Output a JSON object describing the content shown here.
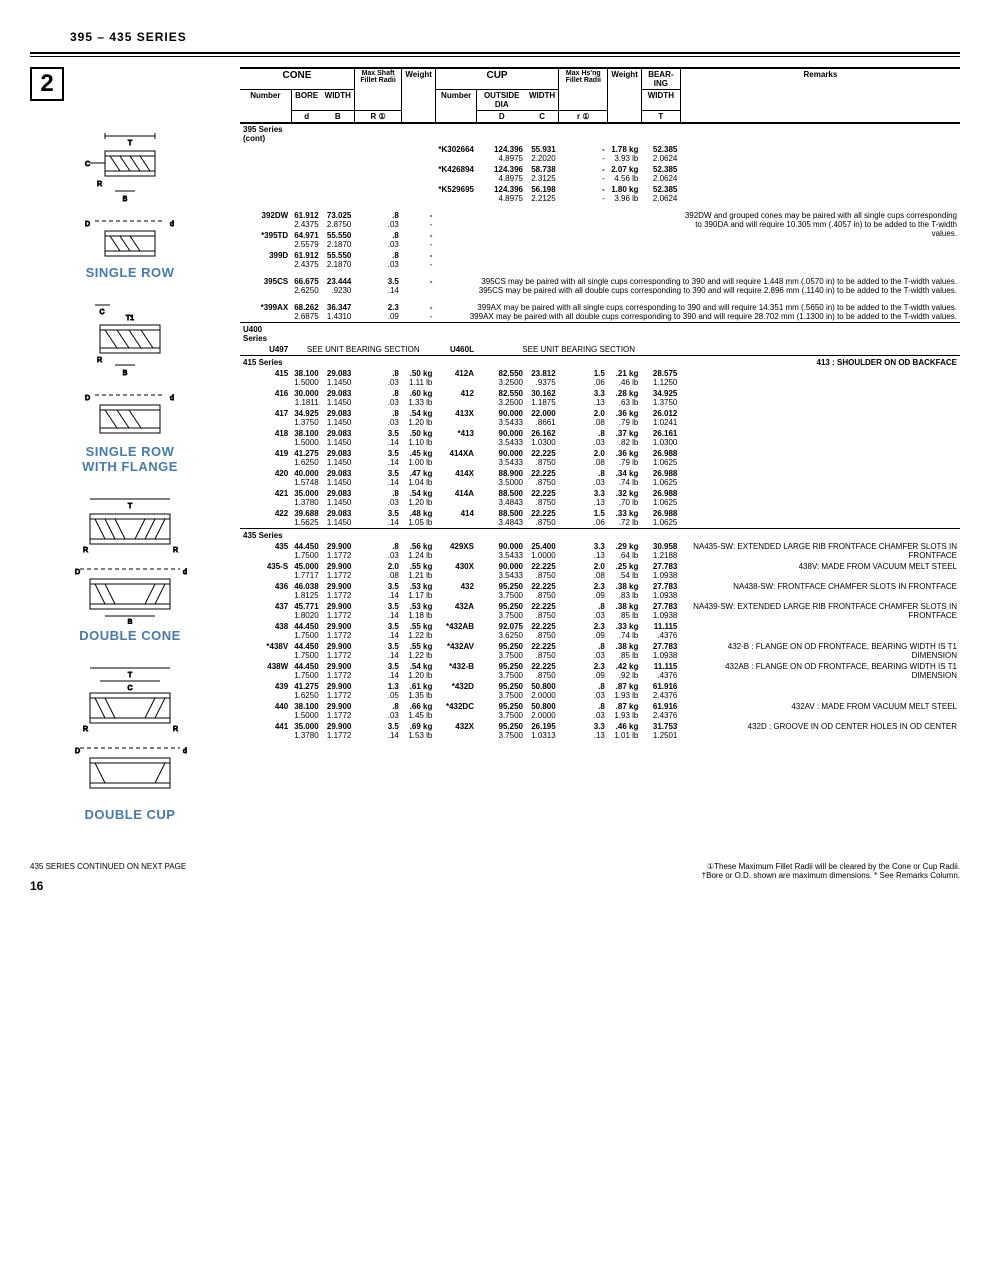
{
  "page_title": "395 – 435 SERIES",
  "section_number": "2",
  "diagrams": [
    {
      "label": "SINGLE ROW"
    },
    {
      "label": "SINGLE ROW\nWITH FLANGE"
    },
    {
      "label": "DOUBLE CONE"
    },
    {
      "label": "DOUBLE CUP"
    }
  ],
  "header": {
    "cone": "CONE",
    "cup": "CUP",
    "number": "Number",
    "bore": "BORE",
    "bore_sym": "d",
    "width": "WIDTH",
    "width_sym": "B",
    "max_shaft": "Max Shaft Fillet Radii",
    "r": "R ①",
    "weight": "Weight",
    "outside": "OUTSIDE DIA",
    "outside_sym": "D",
    "cup_width": "WIDTH",
    "cup_width_sym": "C",
    "max_hsng": "Max Hs'ng Fillet Radii",
    "r2": "r ①",
    "bearing": "BEAR-ING",
    "bearing_width": "WIDTH",
    "bearing_sym": "T",
    "remarks": "Remarks"
  },
  "s395_cont": "395 Series (cont)",
  "s395_cont_rows": [
    {
      "cup": "*K302664",
      "od1": "124.396",
      "od2": "4.8975",
      "cw1": "55.931",
      "cw2": "2.2020",
      "r1": "-",
      "r2": "-",
      "wt1": "1.78 kg",
      "wt2": "3.93 lb",
      "bw1": "52.385",
      "bw2": "2.0624"
    },
    {
      "cup": "*K426894",
      "od1": "124.396",
      "od2": "4.8975",
      "cw1": "58.738",
      "cw2": "2.3125",
      "r1": "-",
      "r2": "-",
      "wt1": "2.07 kg",
      "wt2": "4.56 lb",
      "bw1": "52.385",
      "bw2": "2.0624"
    },
    {
      "cup": "*K529695",
      "od1": "124.396",
      "od2": "4.8975",
      "cw1": "56.198",
      "cw2": "2.2125",
      "r1": "-",
      "r2": "-",
      "wt1": "1.80 kg",
      "wt2": "3.96 lb",
      "bw1": "52.385",
      "bw2": "2.0624"
    }
  ],
  "group1": [
    {
      "n": "392DW",
      "b1": "61.912",
      "b2": "2.4375",
      "w1": "73.025",
      "w2": "2.8750",
      "r1": ".8",
      "r2": ".03",
      "wt1": "-",
      "wt2": "-",
      "rem": "392DW and grouped cones may be paired with all single cups corresponding to 390DA and will require 10.305 mm (.4057 in) to be added to the T-width values."
    },
    {
      "n": "*395TD",
      "b1": "64.971",
      "b2": "2.5579",
      "w1": "55.550",
      "w2": "2.1870",
      "r1": ".8",
      "r2": ".03",
      "wt1": "-",
      "wt2": "-"
    },
    {
      "n": "399D",
      "b1": "61.912",
      "b2": "2.4375",
      "w1": "55.550",
      "w2": "2.1870",
      "r1": ".8",
      "r2": ".03",
      "wt1": "-",
      "wt2": "-"
    }
  ],
  "r395cs": {
    "n": "395CS",
    "b1": "66.675",
    "b2": "2.6250",
    "w1": "23.444",
    "w2": ".9230",
    "r1": "3.5",
    "r2": ".14",
    "wt1": "-",
    "wt2": "",
    "rem": "395CS may be paired with all single cups corresponding to 390 and will require 1.448 mm (.0570 in) to be added to the T-width values.\n395CS may be paired with all double cups corresponding to 390 and will require 2.896 mm (.1140 in) to be added to the T-width values."
  },
  "r399ax": {
    "n": "*399AX",
    "b1": "68.262",
    "b2": "2.6875",
    "w1": "36.347",
    "w2": "1.4310",
    "r1": "2.3",
    "r2": ".09",
    "wt1": "-",
    "wt2": "-",
    "rem": "399AX may be paired with all single cups corresponding to 390 and will require 14.351 mm (.5650 in) to be added to the T-width values.\n399AX may be paired with all double cups corresponding to 390 and will require 28.702 mm (1.1300 in) to be added to the T-width values."
  },
  "u400": {
    "label": "U400 Series",
    "num": "U497",
    "txt": "SEE UNIT BEARING SECTION",
    "cup": "U460L",
    "txt2": "SEE UNIT BEARING SECTION"
  },
  "s415_label": "415 Series",
  "s415_remark": "413 :  SHOULDER ON OD BACKFACE",
  "s415": [
    {
      "n": "415",
      "b1": "38.100",
      "b2": "1.5000",
      "w1": "29.083",
      "w2": "1.1450",
      "r1": ".8",
      "r2": ".03",
      "wt1": ".50 kg",
      "wt2": "1.11 lb",
      "cup": "412A",
      "od1": "82.550",
      "od2": "3.2500",
      "cw1": "23.812",
      "cw2": ".9375",
      "hr1": "1.5",
      "hr2": ".06",
      "cwt1": ".21 kg",
      "cwt2": ".46 lb",
      "bw1": "28.575",
      "bw2": "1.1250"
    },
    {
      "n": "416",
      "b1": "30.000",
      "b2": "1.1811",
      "w1": "29.083",
      "w2": "1.1450",
      "r1": ".8",
      "r2": ".03",
      "wt1": ".60 kg",
      "wt2": "1.33 lb",
      "cup": "412",
      "od1": "82.550",
      "od2": "3.2500",
      "cw1": "30.162",
      "cw2": "1.1875",
      "hr1": "3.3",
      "hr2": ".13",
      "cwt1": ".28 kg",
      "cwt2": ".63 lb",
      "bw1": "34.925",
      "bw2": "1.3750"
    },
    {
      "n": "417",
      "b1": "34.925",
      "b2": "1.3750",
      "w1": "29.083",
      "w2": "1.1450",
      "r1": ".8",
      "r2": ".03",
      "wt1": ".54 kg",
      "wt2": "1.20 lb",
      "cup": "413X",
      "od1": "90.000",
      "od2": "3.5433",
      "cw1": "22.000",
      "cw2": ".8661",
      "hr1": "2.0",
      "hr2": ".08",
      "cwt1": ".36 kg",
      "cwt2": ".79 lb",
      "bw1": "26.012",
      "bw2": "1.0241"
    },
    {
      "n": "418",
      "b1": "38.100",
      "b2": "1.5000",
      "w1": "29.083",
      "w2": "1.1450",
      "r1": "3.5",
      "r2": ".14",
      "wt1": ".50 kg",
      "wt2": "1.10 lb",
      "cup": "*413",
      "od1": "90.000",
      "od2": "3.5433",
      "cw1": "26.162",
      "cw2": "1.0300",
      "hr1": ".8",
      "hr2": ".03",
      "cwt1": ".37 kg",
      "cwt2": ".82 lb",
      "bw1": "26.161",
      "bw2": "1.0300"
    },
    {
      "n": "419",
      "b1": "41.275",
      "b2": "1.6250",
      "w1": "29.083",
      "w2": "1.1450",
      "r1": "3.5",
      "r2": ".14",
      "wt1": ".45 kg",
      "wt2": "1.00 lb",
      "cup": "414XA",
      "od1": "90.000",
      "od2": "3.5433",
      "cw1": "22.225",
      "cw2": ".8750",
      "hr1": "2.0",
      "hr2": ".08",
      "cwt1": ".36 kg",
      "cwt2": ".79 lb",
      "bw1": "26.988",
      "bw2": "1.0625"
    },
    {
      "n": "420",
      "b1": "40.000",
      "b2": "1.5748",
      "w1": "29.083",
      "w2": "1.1450",
      "r1": "3.5",
      "r2": ".14",
      "wt1": ".47 kg",
      "wt2": "1.04 lb",
      "cup": "414X",
      "od1": "88.900",
      "od2": "3.5000",
      "cw1": "22.225",
      "cw2": ".8750",
      "hr1": ".8",
      "hr2": ".03",
      "cwt1": ".34 kg",
      "cwt2": ".74 lb",
      "bw1": "26.988",
      "bw2": "1.0625"
    },
    {
      "n": "421",
      "b1": "35.000",
      "b2": "1.3780",
      "w1": "29.083",
      "w2": "1.1450",
      "r1": ".8",
      "r2": ".03",
      "wt1": ".54 kg",
      "wt2": "1.20 lb",
      "cup": "414A",
      "od1": "88.500",
      "od2": "3.4843",
      "cw1": "22.225",
      "cw2": ".8750",
      "hr1": "3.3",
      "hr2": ".13",
      "cwt1": ".32 kg",
      "cwt2": ".70 lb",
      "bw1": "26.988",
      "bw2": "1.0625"
    },
    {
      "n": "422",
      "b1": "39.688",
      "b2": "1.5625",
      "w1": "29.083",
      "w2": "1.1450",
      "r1": "3.5",
      "r2": ".14",
      "wt1": ".48 kg",
      "wt2": "1.05 lb",
      "cup": "414",
      "od1": "88.500",
      "od2": "3.4843",
      "cw1": "22.225",
      "cw2": ".8750",
      "hr1": "1.5",
      "hr2": ".06",
      "cwt1": ".33 kg",
      "cwt2": ".72 lb",
      "bw1": "26.988",
      "bw2": "1.0625"
    }
  ],
  "s435_label": "435 Series",
  "s435": [
    {
      "n": "435",
      "b1": "44.450",
      "b2": "1.7500",
      "w1": "29.900",
      "w2": "1.1772",
      "r1": ".8",
      "r2": ".03",
      "wt1": ".56 kg",
      "wt2": "1.24 lb",
      "cup": "429XS",
      "od1": "90.000",
      "od2": "3.5433",
      "cw1": "25.400",
      "cw2": "1.0000",
      "hr1": "3.3",
      "hr2": ".13",
      "cwt1": ".29 kg",
      "cwt2": ".64 lb",
      "bw1": "30.958",
      "bw2": "1.2188",
      "rem": "NA435-SW: EXTENDED LARGE RIB FRONTFACE CHAMFER SLOTS IN FRONTFACE"
    },
    {
      "n": "435-S",
      "b1": "45.000",
      "b2": "1.7717",
      "w1": "29.900",
      "w2": "1.1772",
      "r1": "2.0",
      "r2": ".08",
      "wt1": ".55 kg",
      "wt2": "1.21 lb",
      "cup": "430X",
      "od1": "90.000",
      "od2": "3.5433",
      "cw1": "22.225",
      "cw2": ".8750",
      "hr1": "2.0",
      "hr2": ".08",
      "cwt1": ".25 kg",
      "cwt2": ".54 lb",
      "bw1": "27.783",
      "bw2": "1.0938",
      "rem": "438V: MADE FROM VACUUM MELT STEEL"
    },
    {
      "n": "436",
      "b1": "46.038",
      "b2": "1.8125",
      "w1": "29.900",
      "w2": "1.1772",
      "r1": "3.5",
      "r2": ".14",
      "wt1": ".53 kg",
      "wt2": "1.17 lb",
      "cup": "432",
      "od1": "95.250",
      "od2": "3.7500",
      "cw1": "22.225",
      "cw2": ".8750",
      "hr1": "2.3",
      "hr2": ".09",
      "cwt1": ".38 kg",
      "cwt2": ".83 lb",
      "bw1": "27.783",
      "bw2": "1.0938",
      "rem": "NA438-SW: FRONTFACE CHAMFER SLOTS IN FRONTFACE"
    },
    {
      "n": "437",
      "b1": "45.771",
      "b2": "1.8020",
      "w1": "29.900",
      "w2": "1.1772",
      "r1": "3.5",
      "r2": ".14",
      "wt1": ".53 kg",
      "wt2": "1.18 lb",
      "cup": "432A",
      "od1": "95.250",
      "od2": "3.7500",
      "cw1": "22.225",
      "cw2": ".8750",
      "hr1": ".8",
      "hr2": ".03",
      "cwt1": ".38 kg",
      "cwt2": ".85 lb",
      "bw1": "27.783",
      "bw2": "1.0938",
      "rem": "NA439-SW: EXTENDED LARGE RIB FRONTFACE CHAMFER SLOTS IN FRONTFACE"
    },
    {
      "n": "438",
      "b1": "44.450",
      "b2": "1.7500",
      "w1": "29.900",
      "w2": "1.1772",
      "r1": "3.5",
      "r2": ".14",
      "wt1": ".55 kg",
      "wt2": "1.22 lb",
      "cup": "*432AB",
      "od1": "92.075",
      "od2": "3.6250",
      "cw1": "22.225",
      "cw2": ".8750",
      "hr1": "2.3",
      "hr2": ".09",
      "cwt1": ".33 kg",
      "cwt2": ".74 lb",
      "bw1": "11.115",
      "bw2": ".4376",
      "rem": ""
    },
    {
      "n": "*438V",
      "b1": "44.450",
      "b2": "1.7500",
      "w1": "29.900",
      "w2": "1.1772",
      "r1": "3.5",
      "r2": ".14",
      "wt1": ".55 kg",
      "wt2": "1.22 lb",
      "cup": "*432AV",
      "od1": "95.250",
      "od2": "3.7500",
      "cw1": "22.225",
      "cw2": ".8750",
      "hr1": ".8",
      "hr2": ".03",
      "cwt1": ".38 kg",
      "cwt2": ".85 lb",
      "bw1": "27.783",
      "bw2": "1.0938",
      "rem": "432-B : FLANGE ON OD FRONTFACE, BEARING WIDTH IS T1 DIMENSION"
    },
    {
      "n": "438W",
      "b1": "44.450",
      "b2": "1.7500",
      "w1": "29.900",
      "w2": "1.1772",
      "r1": "3.5",
      "r2": ".14",
      "wt1": ".54 kg",
      "wt2": "1.20 lb",
      "cup": "*432-B",
      "od1": "95.250",
      "od2": "3.7500",
      "cw1": "22.225",
      "cw2": ".8750",
      "hr1": "2.3",
      "hr2": ".09",
      "cwt1": ".42 kg",
      "cwt2": ".92 lb",
      "bw1": "11.115",
      "bw2": ".4376",
      "rem": "432AB : FLANGE ON OD FRONTFACE, BEARING WIDTH IS T1 DIMENSION"
    },
    {
      "n": "439",
      "b1": "41.275",
      "b2": "1.6250",
      "w1": "29.900",
      "w2": "1.1772",
      "r1": "1.3",
      "r2": ".05",
      "wt1": ".61 kg",
      "wt2": "1.35 lb",
      "cup": "*432D",
      "od1": "95.250",
      "od2": "3.7500",
      "cw1": "50.800",
      "cw2": "2.0000",
      "hr1": ".8",
      "hr2": ".03",
      "cwt1": ".87 kg",
      "cwt2": "1.93 lb",
      "bw1": "61.916",
      "bw2": "2.4376",
      "rem": ""
    },
    {
      "n": "440",
      "b1": "38.100",
      "b2": "1.5000",
      "w1": "29.900",
      "w2": "1.1772",
      "r1": ".8",
      "r2": ".03",
      "wt1": ".66 kg",
      "wt2": "1.45 lb",
      "cup": "*432DC",
      "od1": "95.250",
      "od2": "3.7500",
      "cw1": "50.800",
      "cw2": "2.0000",
      "hr1": ".8",
      "hr2": ".03",
      "cwt1": ".87 kg",
      "cwt2": "1.93 lb",
      "bw1": "61.916",
      "bw2": "2.4376",
      "rem": "432AV : MADE FROM VACUUM MELT STEEL"
    },
    {
      "n": "441",
      "b1": "35.000",
      "b2": "1.3780",
      "w1": "29.900",
      "w2": "1.1772",
      "r1": "3.5",
      "r2": ".14",
      "wt1": ".69 kg",
      "wt2": "1.53 lb",
      "cup": "432X",
      "od1": "95.250",
      "od2": "3.7500",
      "cw1": "26.195",
      "cw2": "1.0313",
      "hr1": "3.3",
      "hr2": ".13",
      "cwt1": ".46 kg",
      "cwt2": "1.01 lb",
      "bw1": "31.753",
      "bw2": "1.2501",
      "rem": "432D : GROOVE IN OD CENTER HOLES IN OD CENTER"
    }
  ],
  "footer_left": "435 SERIES CONTINUED ON NEXT PAGE",
  "footer_right": "①These Maximum Fillet Radii will be cleared by the Cone or Cup Radii.\n†Bore or O.D. shown are maximum dimensions.   * See Remarks Column.",
  "page_number": "16"
}
